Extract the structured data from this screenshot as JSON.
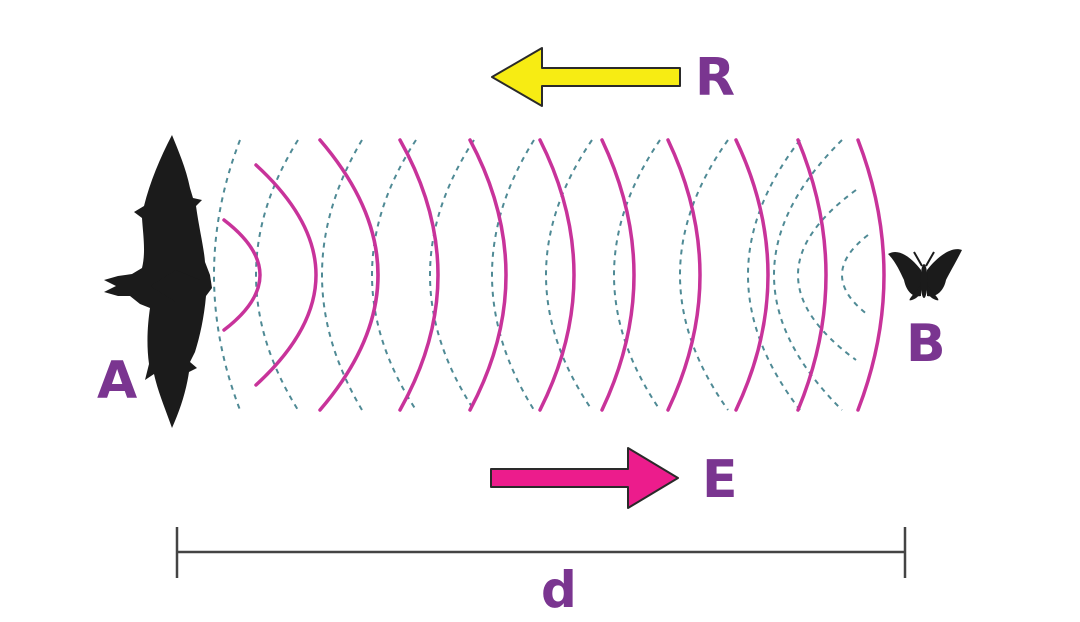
{
  "labels": {
    "emitter": "A",
    "target": "B",
    "reflected": "R",
    "emitted": "E",
    "distance": "d"
  },
  "colors": {
    "label": "#7a3590",
    "emitted_wave": "#c8339a",
    "reflected_wave": "#4f8a95",
    "emitted_arrow": "#ec1c8c",
    "reflected_arrow": "#f7ec13",
    "arrow_outline": "#2a2a2a",
    "silhouette": "#1b1b1b",
    "distance_line": "#444444"
  },
  "icons": {
    "emitter": "bat-silhouette-icon",
    "target": "butterfly-silhouette-icon"
  }
}
